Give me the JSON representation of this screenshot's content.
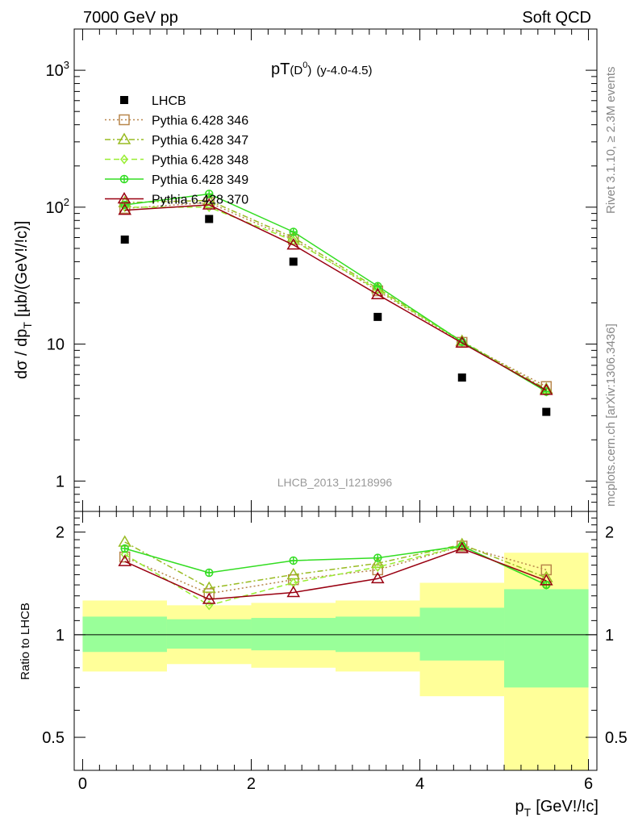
{
  "header": {
    "left": "7000 GeV pp",
    "right": "Soft QCD"
  },
  "side_labels": {
    "rivet": "Rivet 3.1.10, ≥ 2.3M events",
    "mcplots": "mcplots.cern.ch [arXiv:1306.3436]"
  },
  "chart_data": [
    {
      "type": "scatter",
      "title_main": "pT",
      "title_paren": "D",
      "title_sup": "0",
      "title_rest": "(y-4.0-4.5)",
      "analysis_tag": "LHCB_2013_I1218996",
      "ylabel_main": "dσ / dp",
      "ylabel_sub": "T",
      "ylabel_rest": "[µb/(GeV!/!c)]",
      "yscale": "log",
      "ylim": [
        0.6,
        2000
      ],
      "xlim": [
        -0.1,
        6.1
      ],
      "y_ticks": [
        {
          "value": 1,
          "label": "1"
        },
        {
          "value": 10,
          "label": "10"
        },
        {
          "value": 100,
          "label": "10",
          "sup": "2"
        },
        {
          "value": 1000,
          "label": "10",
          "sup": "3"
        }
      ],
      "x": [
        0.5,
        1.5,
        2.5,
        3.5,
        4.5,
        5.5
      ],
      "legend_position": "top-left",
      "series": [
        {
          "name": "LHCB",
          "marker": "filled-square",
          "line": "none",
          "color": "#000000",
          "values": [
            58,
            82,
            40,
            15.8,
            5.7,
            3.2
          ]
        },
        {
          "name": "Pythia 6.428 346",
          "marker": "open-square",
          "line": "dotted",
          "color": "#b8864b",
          "values": [
            98,
            108,
            58,
            24.5,
            10.3,
            4.9
          ]
        },
        {
          "name": "Pythia 6.428 347",
          "marker": "open-triangle",
          "line": "dashdot",
          "color": "#99bb22",
          "values": [
            108,
            112,
            60,
            25.5,
            10.5,
            4.7
          ]
        },
        {
          "name": "Pythia 6.428 348",
          "marker": "open-diamond",
          "line": "dashed",
          "color": "#99ee33",
          "values": [
            100,
            100,
            57,
            25,
            10.4,
            4.5
          ]
        },
        {
          "name": "Pythia 6.428 349",
          "marker": "cross-circle",
          "line": "solid",
          "color": "#33dd22",
          "values": [
            104,
            125,
            66,
            26.5,
            10.4,
            4.5
          ]
        },
        {
          "name": "Pythia 6.428 370",
          "marker": "open-triangle",
          "line": "solid",
          "color": "#990011",
          "values": [
            95,
            104,
            53,
            23,
            10.2,
            4.6
          ]
        }
      ]
    },
    {
      "type": "scatter",
      "ylabel": "Ratio to LHCB",
      "xlabel_main": "p",
      "xlabel_sub": "T",
      "xlabel_rest": "[GeV!/!c]",
      "yscale": "log",
      "ylim": [
        0.4,
        2.3
      ],
      "xlim": [
        -0.1,
        6.1
      ],
      "x_ticks": [
        0,
        2,
        4,
        6
      ],
      "y_ticks": [
        {
          "value": 0.5,
          "label": "0.5"
        },
        {
          "value": 1,
          "label": "1"
        },
        {
          "value": 2,
          "label": "2"
        }
      ],
      "reference_line": 1,
      "bands": [
        {
          "x0": 0,
          "x1": 1,
          "yellow": [
            0.78,
            1.26
          ],
          "green": [
            0.89,
            1.13
          ]
        },
        {
          "x0": 1,
          "x1": 2,
          "yellow": [
            0.82,
            1.22
          ],
          "green": [
            0.91,
            1.11
          ]
        },
        {
          "x0": 2,
          "x1": 3,
          "yellow": [
            0.8,
            1.24
          ],
          "green": [
            0.9,
            1.12
          ]
        },
        {
          "x0": 3,
          "x1": 4,
          "yellow": [
            0.78,
            1.26
          ],
          "green": [
            0.89,
            1.13
          ]
        },
        {
          "x0": 4,
          "x1": 5,
          "yellow": [
            0.66,
            1.42
          ],
          "green": [
            0.84,
            1.2
          ]
        },
        {
          "x0": 5,
          "x1": 6,
          "yellow": [
            0.4,
            1.74
          ],
          "green": [
            0.7,
            1.36
          ]
        }
      ],
      "x": [
        0.5,
        1.5,
        2.5,
        3.5,
        4.5,
        5.5
      ],
      "series": [
        {
          "ref": 1,
          "values": [
            1.69,
            1.32,
            1.45,
            1.55,
            1.82,
            1.55
          ]
        },
        {
          "ref": 2,
          "values": [
            1.87,
            1.37,
            1.5,
            1.62,
            1.84,
            1.47
          ]
        },
        {
          "ref": 3,
          "values": [
            1.72,
            1.22,
            1.42,
            1.58,
            1.82,
            1.4
          ]
        },
        {
          "ref": 4,
          "values": [
            1.79,
            1.52,
            1.65,
            1.68,
            1.82,
            1.4
          ]
        },
        {
          "ref": 5,
          "values": [
            1.64,
            1.27,
            1.33,
            1.46,
            1.79,
            1.44
          ]
        }
      ]
    }
  ]
}
